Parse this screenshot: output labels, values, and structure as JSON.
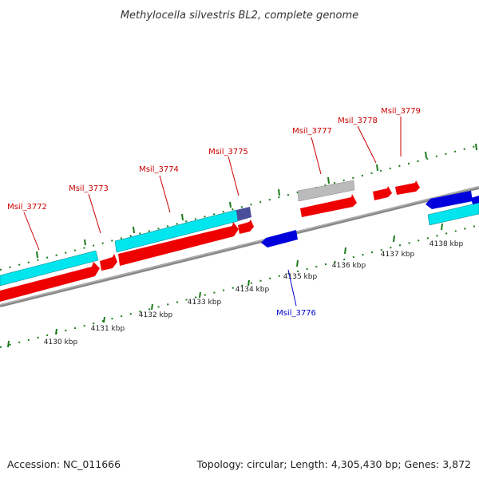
{
  "title": "Methylocella silvestris BL2, complete genome",
  "footer": {
    "accession": "Accession: NC_011666",
    "summary": "Topology: circular; Length: 4,305,430 bp; Genes: 3,872"
  },
  "colors": {
    "forward_gene": "#ee0000",
    "reverse_gene": "#0000dd",
    "cds_forward_block": "#00e5ee",
    "rna_block": "#bbbbbb",
    "partial_block": "#4a4f9a",
    "backbone": "#888888",
    "ticks": "#1a7a1a",
    "forward_label": "#cc0000",
    "reverse_label": "#0000cc"
  },
  "tick_labels": [
    "4130 kbp",
    "4131 kbp",
    "4132 kbp",
    "4133 kbp",
    "4134 kbp",
    "4135 kbp",
    "4136 kbp",
    "4137 kbp",
    "4138 kbp"
  ],
  "gene_labels": {
    "g3772": "Msil_3772",
    "g3773": "Msil_3773",
    "g3774": "Msil_3774",
    "g3775": "Msil_3775",
    "g3776": "Msil_3776",
    "g3777": "Msil_3777",
    "g3778": "Msil_3778",
    "g3779": "Msil_3779"
  }
}
